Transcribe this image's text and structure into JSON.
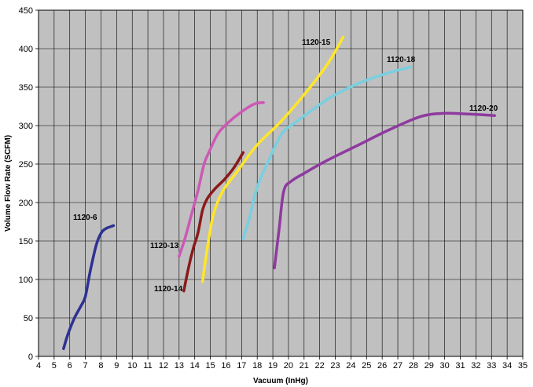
{
  "chart_data": {
    "type": "line",
    "title": "",
    "xlabel": "Vacuum (InHg)",
    "ylabel": "Volume Flow Rate (SCFM)",
    "xlim": [
      4,
      35
    ],
    "ylim": [
      0,
      450
    ],
    "x_ticks": [
      4,
      5,
      6,
      7,
      8,
      9,
      10,
      11,
      12,
      13,
      14,
      15,
      16,
      17,
      18,
      19,
      20,
      21,
      22,
      23,
      24,
      25,
      26,
      27,
      28,
      29,
      30,
      31,
      32,
      33,
      34,
      35
    ],
    "y_ticks": [
      0,
      50,
      100,
      150,
      200,
      250,
      300,
      350,
      400,
      450
    ],
    "grid": true,
    "legend": "none",
    "series": [
      {
        "name": "1120-6",
        "color": "#2e3192",
        "points": [
          [
            5.6,
            10
          ],
          [
            5.9,
            30
          ],
          [
            6.3,
            50
          ],
          [
            6.7,
            65
          ],
          [
            7.0,
            78
          ],
          [
            7.3,
            110
          ],
          [
            7.7,
            145
          ],
          [
            8.0,
            160
          ],
          [
            8.3,
            166
          ],
          [
            8.8,
            170
          ]
        ]
      },
      {
        "name": "1120-13",
        "color": "#cc59b4",
        "points": [
          [
            13.0,
            130
          ],
          [
            13.4,
            155
          ],
          [
            13.8,
            185
          ],
          [
            14.2,
            215
          ],
          [
            14.6,
            250
          ],
          [
            14.9,
            265
          ],
          [
            15.5,
            290
          ],
          [
            16.2,
            305
          ],
          [
            17.0,
            318
          ],
          [
            17.8,
            328
          ],
          [
            18.4,
            330
          ]
        ]
      },
      {
        "name": "1120-14",
        "color": "#8b1a1a",
        "points": [
          [
            13.3,
            85
          ],
          [
            13.6,
            115
          ],
          [
            13.9,
            140
          ],
          [
            14.2,
            160
          ],
          [
            14.5,
            190
          ],
          [
            14.8,
            205
          ],
          [
            15.3,
            218
          ],
          [
            15.9,
            230
          ],
          [
            16.5,
            245
          ],
          [
            17.1,
            265
          ]
        ]
      },
      {
        "name": "1120-15",
        "color": "#ffe629",
        "points": [
          [
            14.5,
            97
          ],
          [
            14.8,
            140
          ],
          [
            15.2,
            185
          ],
          [
            15.8,
            215
          ],
          [
            16.7,
            240
          ],
          [
            18.0,
            275
          ],
          [
            19.5,
            305
          ],
          [
            21.0,
            340
          ],
          [
            22.5,
            380
          ],
          [
            23.5,
            415
          ]
        ]
      },
      {
        "name": "1120-18",
        "color": "#79cfe0",
        "points": [
          [
            17.1,
            153
          ],
          [
            17.5,
            180
          ],
          [
            18.0,
            220
          ],
          [
            18.8,
            258
          ],
          [
            19.6,
            290
          ],
          [
            20.5,
            305
          ],
          [
            21.5,
            320
          ],
          [
            22.8,
            338
          ],
          [
            24.5,
            355
          ],
          [
            26.3,
            368
          ],
          [
            27.8,
            376
          ]
        ]
      },
      {
        "name": "1120-20",
        "color": "#8e3a9f",
        "points": [
          [
            19.1,
            115
          ],
          [
            19.4,
            165
          ],
          [
            19.7,
            215
          ],
          [
            20.2,
            228
          ],
          [
            21.0,
            238
          ],
          [
            22.5,
            255
          ],
          [
            24.5,
            275
          ],
          [
            26.5,
            295
          ],
          [
            28.5,
            312
          ],
          [
            30.0,
            316
          ],
          [
            31.5,
            315
          ],
          [
            33.2,
            313
          ]
        ]
      }
    ],
    "x_tick_labels": [
      "4",
      "5",
      "6",
      "7",
      "8",
      "9",
      "10",
      "11",
      "12",
      "13",
      "14",
      "15",
      "16",
      "17",
      "18",
      "19",
      "20",
      "21",
      "22",
      "23",
      "24",
      "25",
      "26",
      "27",
      "28",
      "29",
      "30",
      "31",
      "32",
      "33",
      "34",
      "35"
    ],
    "y_tick_labels": [
      "0",
      "50",
      "100",
      "150",
      "200",
      "250",
      "300",
      "350",
      "400",
      "450"
    ]
  }
}
